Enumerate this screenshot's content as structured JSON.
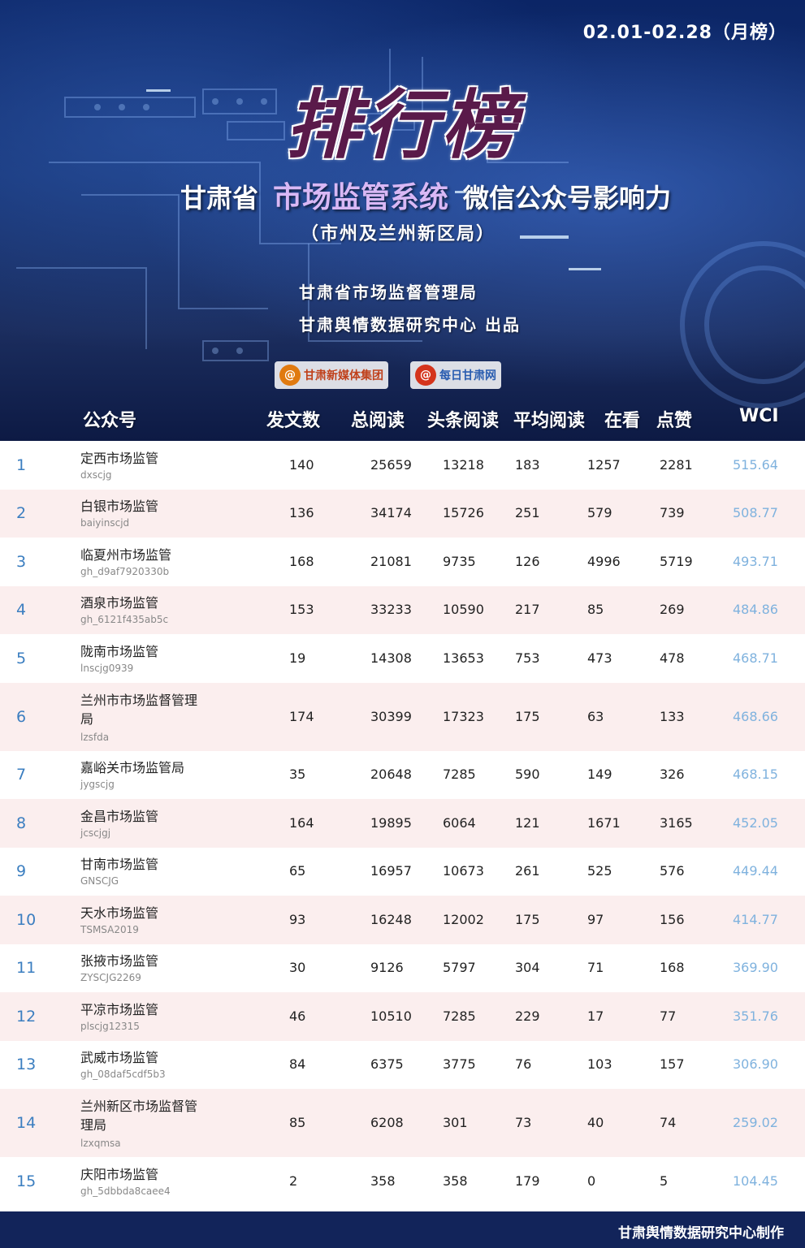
{
  "header": {
    "period": "02.01-02.28（月榜）",
    "main_title": "排行榜",
    "subtitle_prefix": "甘肃省",
    "subtitle_highlight": "市场监管系统",
    "subtitle_suffix": "微信公众号影响力",
    "subtitle2": "（市州及兰州新区局）",
    "org_line1": "甘肃省市场监督管理局",
    "org_line2": "甘肃舆情数据研究中心 出品",
    "logos": [
      {
        "text": "甘肃新媒体集团",
        "icon": "gansu-media-group-logo"
      },
      {
        "text": "每日甘肃网",
        "icon": "meiri-gansu-logo"
      }
    ]
  },
  "columns": [
    "公众号",
    "发文数",
    "总阅读",
    "头条阅读",
    "平均阅读",
    "在看",
    "点赞",
    "WCI"
  ],
  "rows": [
    {
      "rank": "1",
      "name": "定西市场监管",
      "account": "dxscjg",
      "posts": "140",
      "total": "25659",
      "headline": "13218",
      "avg": "183",
      "looking": "1257",
      "likes": "2281",
      "wci": "515.64"
    },
    {
      "rank": "2",
      "name": "白银市场监管",
      "account": "baiyinscjd",
      "posts": "136",
      "total": "34174",
      "headline": "15726",
      "avg": "251",
      "looking": "579",
      "likes": "739",
      "wci": "508.77"
    },
    {
      "rank": "3",
      "name": "临夏州市场监管",
      "account": "gh_d9af7920330b",
      "posts": "168",
      "total": "21081",
      "headline": "9735",
      "avg": "126",
      "looking": "4996",
      "likes": "5719",
      "wci": "493.71"
    },
    {
      "rank": "4",
      "name": "酒泉市场监管",
      "account": "gh_6121f435ab5c",
      "posts": "153",
      "total": "33233",
      "headline": "10590",
      "avg": "217",
      "looking": "85",
      "likes": "269",
      "wci": "484.86"
    },
    {
      "rank": "5",
      "name": "陇南市场监管",
      "account": "lnscjg0939",
      "posts": "19",
      "total": "14308",
      "headline": "13653",
      "avg": "753",
      "looking": "473",
      "likes": "478",
      "wci": "468.71"
    },
    {
      "rank": "6",
      "name": "兰州市市场监督管理局",
      "name_l1": "兰州市市场监督管理",
      "name_l2": "局",
      "account": "lzsfda",
      "posts": "174",
      "total": "30399",
      "headline": "17323",
      "avg": "175",
      "looking": "63",
      "likes": "133",
      "wci": "468.66"
    },
    {
      "rank": "7",
      "name": "嘉峪关市场监管局",
      "account": "jygscjg",
      "posts": "35",
      "total": "20648",
      "headline": "7285",
      "avg": "590",
      "looking": "149",
      "likes": "326",
      "wci": "468.15"
    },
    {
      "rank": "8",
      "name": "金昌市场监管",
      "account": "jcscjgj",
      "posts": "164",
      "total": "19895",
      "headline": "6064",
      "avg": "121",
      "looking": "1671",
      "likes": "3165",
      "wci": "452.05"
    },
    {
      "rank": "9",
      "name": "甘南市场监管",
      "account": "GNSCJG",
      "posts": "65",
      "total": "16957",
      "headline": "10673",
      "avg": "261",
      "looking": "525",
      "likes": "576",
      "wci": "449.44"
    },
    {
      "rank": "10",
      "name": "天水市场监管",
      "account": "TSMSA2019",
      "posts": "93",
      "total": "16248",
      "headline": "12002",
      "avg": "175",
      "looking": "97",
      "likes": "156",
      "wci": "414.77"
    },
    {
      "rank": "11",
      "name": "张掖市场监管",
      "account": "ZYSCJG2269",
      "posts": "30",
      "total": "9126",
      "headline": "5797",
      "avg": "304",
      "looking": "71",
      "likes": "168",
      "wci": "369.90"
    },
    {
      "rank": "12",
      "name": "平凉市场监管",
      "account": "plscjg12315",
      "posts": "46",
      "total": "10510",
      "headline": "7285",
      "avg": "229",
      "looking": "17",
      "likes": "77",
      "wci": "351.76"
    },
    {
      "rank": "13",
      "name": "武威市场监管",
      "account": "gh_08daf5cdf5b3",
      "posts": "84",
      "total": "6375",
      "headline": "3775",
      "avg": "76",
      "looking": "103",
      "likes": "157",
      "wci": "306.90"
    },
    {
      "rank": "14",
      "name": "兰州新区市场监督管理局",
      "name_l1": "兰州新区市场监督管",
      "name_l2": "理局",
      "account": "lzxqmsa",
      "posts": "85",
      "total": "6208",
      "headline": "301",
      "avg": "73",
      "looking": "40",
      "likes": "74",
      "wci": "259.02"
    },
    {
      "rank": "15",
      "name": "庆阳市场监管",
      "account": "gh_5dbbda8caee4",
      "posts": "2",
      "total": "358",
      "headline": "358",
      "avg": "179",
      "looking": "0",
      "likes": "5",
      "wci": "104.45"
    }
  ],
  "footer": {
    "credit": "甘肃舆情数据研究中心制作"
  },
  "colors": {
    "banner": "#14306f",
    "rank": "#3b7ec0",
    "wci": "#7fb2de",
    "alt_row": "#fbeeee",
    "footer": "#12245a"
  }
}
